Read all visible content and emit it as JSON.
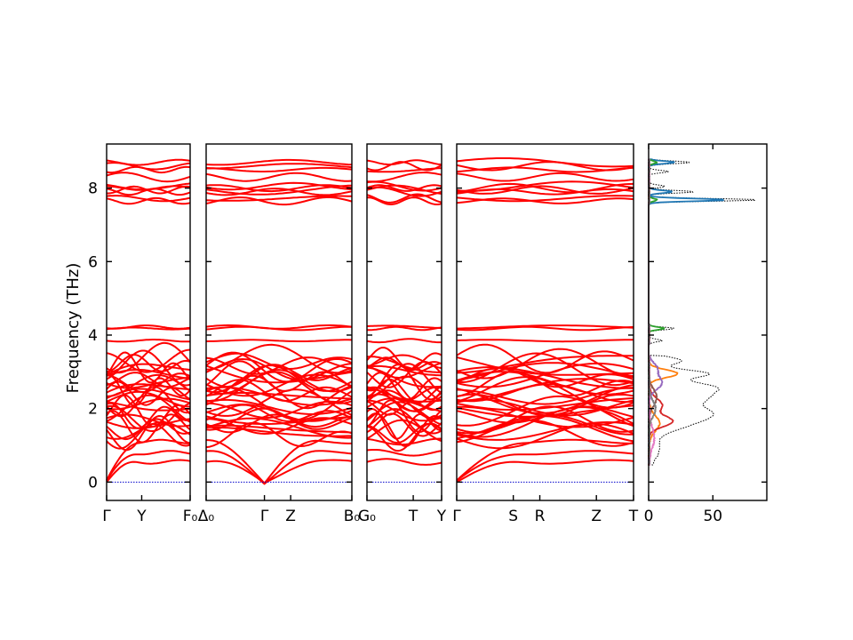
{
  "chart_data": {
    "type": "line",
    "ylabel": "Frequency (THz)",
    "ylim": [
      -0.5,
      9.2
    ],
    "yticks": [
      0,
      2,
      4,
      6,
      8
    ],
    "colors": {
      "bands": "#ff0000",
      "zero_line": "#0000cc",
      "dos_total": "#000000",
      "dos_partial": [
        "#1f77b4",
        "#ff7f0e",
        "#2ca02c",
        "#d62728",
        "#9467bd",
        "#8c564b",
        "#e377c2",
        "#7f7f7f"
      ]
    },
    "segments": [
      {
        "labels": [
          "Γ",
          "Y",
          "F₀"
        ],
        "label_pos": [
          0,
          0.42,
          1.0
        ]
      },
      {
        "labels": [
          "Δ₀",
          "Γ",
          "Z",
          "B₀"
        ],
        "label_pos": [
          0,
          0.4,
          0.58,
          1.0
        ]
      },
      {
        "labels": [
          "G₀",
          "T",
          "Y"
        ],
        "label_pos": [
          0,
          0.62,
          1.0
        ]
      },
      {
        "labels": [
          "Γ",
          "S",
          "R",
          "Z",
          "T"
        ],
        "label_pos": [
          0,
          0.32,
          0.47,
          0.79,
          1.0
        ]
      }
    ],
    "dos_panel": {
      "xlim": [
        0,
        92
      ],
      "xticks": [
        0,
        50
      ]
    }
  }
}
